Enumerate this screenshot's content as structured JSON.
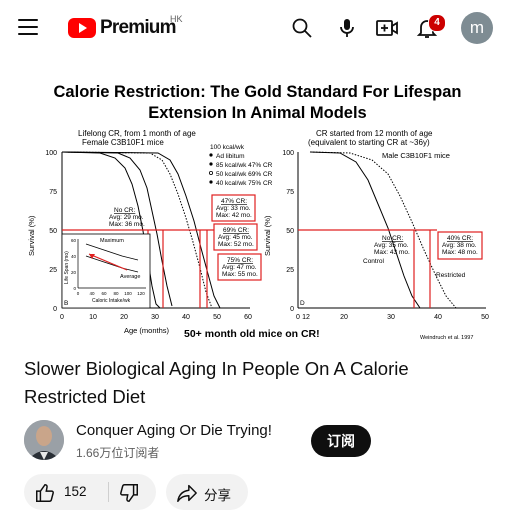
{
  "header": {
    "logo_text": "Premium",
    "region": "HK",
    "notifications_count": "4",
    "account_initial": "m",
    "icons": [
      "menu-icon",
      "search-icon",
      "mic-icon",
      "create-icon",
      "bell-icon"
    ]
  },
  "video": {
    "title_line1": "Calorie Restriction: The Gold Standard For Lifespan",
    "title_line2": "Extension In Animal Models",
    "left_panel": {
      "caption1": "Lifelong CR, from 1 month of age",
      "caption2": "Female C3B10F1 mice",
      "legend": [
        "100 kcal/wk",
        "Ad libitum",
        "85 kcal/wk  47% CR",
        "50 kcal/wk  69% CR",
        "40 kcal/wk  75% CR"
      ],
      "box_nocr": [
        "No CR:",
        "Avg: 29 mo.",
        "Max: 36 mo."
      ],
      "box_47": [
        "47% CR:",
        "Avg: 33 mo.",
        "Max: 42 mo."
      ],
      "box_69": [
        "69% CR:",
        "Avg: 45 mo.",
        "Max: 52 mo."
      ],
      "box_75": [
        "75% CR:",
        "Avg: 47 mo.",
        "Max: 55 mo."
      ],
      "inset_ylabel": "Life Span (mo)",
      "inset_xlabel": "Caloric Intake/wk",
      "inset_max": "Maximum",
      "inset_avg": "Average",
      "inset_letter": "B",
      "y_label": "Survival (%)",
      "x_label": "Age (months)",
      "y_ticks": [
        "100",
        "75",
        "50",
        "25",
        "0"
      ],
      "x_ticks": [
        "0",
        "10",
        "20",
        "30",
        "40",
        "50",
        "60"
      ],
      "inset_y_ticks": [
        "60",
        "40",
        "20",
        "0"
      ],
      "inset_x_ticks": [
        "0",
        "40",
        "60",
        "80",
        "100",
        "120"
      ]
    },
    "right_panel": {
      "caption1": "CR started from 12 month of age",
      "caption2": "(equivalent to starting CR at ~36y)",
      "group": "Male C3B10F1 mice",
      "control_label": "Control",
      "restricted_label": "Restricted",
      "box_nocr": [
        "No CR:",
        "Avg: 35 mo.",
        "Max: 43 mo."
      ],
      "box_40": [
        "40% CR:",
        "Avg: 38 mo.",
        "Max: 48 mo."
      ],
      "letter": "D",
      "y_label": "Survival (%)",
      "y_ticks": [
        "100",
        "75",
        "50",
        "25",
        "0"
      ],
      "x_ticks": [
        "0",
        "12",
        "20",
        "30",
        "40",
        "50"
      ]
    },
    "footer_text": "50+ month old mice on CR!",
    "citation": "Weindruch et al. 1997"
  },
  "info": {
    "title": "Slower Biological Aging In People On A Calorie Restricted Diet",
    "channel_name": "Conquer Aging Or Die Trying!",
    "subscribers": "1.66万位订阅者",
    "subscribe_label": "订阅",
    "likes": "152",
    "share_label": "分享"
  },
  "colors": {
    "accent_red": "#e02020",
    "logo_red": "#ff0000"
  }
}
